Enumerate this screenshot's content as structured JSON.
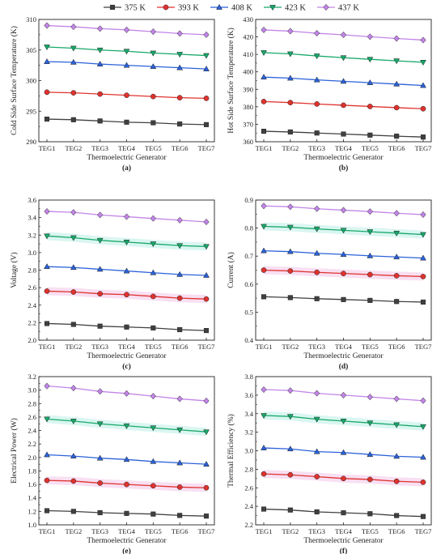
{
  "legend": {
    "position": "top-center",
    "items": [
      {
        "label": "375 K",
        "color": "#404040",
        "marker": "square"
      },
      {
        "label": "393 K",
        "color": "#e0322e",
        "marker": "circle"
      },
      {
        "label": "408 K",
        "color": "#2b62d9",
        "marker": "triangle-up"
      },
      {
        "label": "423 K",
        "color": "#17a86a",
        "marker": "triangle-down"
      },
      {
        "label": "437 K",
        "color": "#c285e8",
        "marker": "diamond"
      }
    ]
  },
  "chart_data": [
    {
      "type": "line",
      "panel_label": "(a)",
      "xlabel": "Thermoelectric Generator",
      "ylabel": "Cold Side Surface Temperature (K)",
      "categories": [
        "TEG1",
        "TEG2",
        "TEG3",
        "TEG4",
        "TEG5",
        "TEG6",
        "TEG7"
      ],
      "ylim": [
        290,
        310
      ],
      "yticks": [
        "290",
        "295",
        "300",
        "305",
        "310"
      ],
      "series": [
        {
          "name": "375 K",
          "values": [
            293.7,
            293.6,
            293.4,
            293.2,
            293.1,
            292.9,
            292.8
          ]
        },
        {
          "name": "393 K",
          "values": [
            298.1,
            298.0,
            297.8,
            297.6,
            297.4,
            297.2,
            297.1
          ]
        },
        {
          "name": "408 K",
          "values": [
            303.1,
            303.0,
            302.7,
            302.5,
            302.3,
            302.1,
            301.9
          ]
        },
        {
          "name": "423 K",
          "values": [
            305.5,
            305.3,
            305.0,
            304.8,
            304.5,
            304.3,
            304.1
          ]
        },
        {
          "name": "437 K",
          "values": [
            309.0,
            308.8,
            308.5,
            308.3,
            308.0,
            307.7,
            307.5
          ]
        }
      ]
    },
    {
      "type": "line",
      "panel_label": "(b)",
      "xlabel": "Thermoelectric Generator",
      "ylabel": "Hot Side Surface Temperature (K)",
      "categories": [
        "TEG1",
        "TEG2",
        "TEG3",
        "TEG4",
        "TEG5",
        "TEG6",
        "TEG7"
      ],
      "ylim": [
        360,
        430
      ],
      "yticks": [
        "360",
        "370",
        "380",
        "390",
        "400",
        "410",
        "420",
        "430"
      ],
      "series": [
        {
          "name": "375 K",
          "values": [
            366.0,
            365.6,
            365.0,
            364.4,
            363.8,
            363.2,
            362.7
          ]
        },
        {
          "name": "393 K",
          "values": [
            383.0,
            382.4,
            381.6,
            380.9,
            380.2,
            379.5,
            378.9
          ]
        },
        {
          "name": "408 K",
          "values": [
            397.0,
            396.4,
            395.4,
            394.6,
            393.8,
            393.0,
            392.2
          ]
        },
        {
          "name": "423 K",
          "values": [
            411.0,
            410.3,
            409.1,
            408.1,
            407.2,
            406.3,
            405.5
          ]
        },
        {
          "name": "437 K",
          "values": [
            424.0,
            423.3,
            422.1,
            421.2,
            420.1,
            419.1,
            418.2
          ]
        }
      ]
    },
    {
      "type": "line",
      "panel_label": "(c)",
      "xlabel": "Thermoelectric Generator",
      "ylabel": "Voltage (V)",
      "categories": [
        "TEG1",
        "TEG2",
        "TEG3",
        "TEG4",
        "TEG5",
        "TEG6",
        "TEG7"
      ],
      "ylim": [
        2.0,
        3.6
      ],
      "yticks": [
        "2.0",
        "2.2",
        "2.4",
        "2.6",
        "2.8",
        "3.0",
        "3.2",
        "3.4",
        "3.6"
      ],
      "series": [
        {
          "name": "375 K",
          "values": [
            2.19,
            2.18,
            2.16,
            2.15,
            2.14,
            2.12,
            2.11
          ]
        },
        {
          "name": "393 K",
          "values": [
            2.56,
            2.55,
            2.53,
            2.52,
            2.5,
            2.48,
            2.47
          ]
        },
        {
          "name": "408 K",
          "values": [
            2.84,
            2.83,
            2.81,
            2.79,
            2.77,
            2.75,
            2.74
          ]
        },
        {
          "name": "423 K",
          "values": [
            3.19,
            3.17,
            3.14,
            3.12,
            3.1,
            3.08,
            3.07
          ]
        },
        {
          "name": "437 K",
          "values": [
            3.47,
            3.46,
            3.43,
            3.41,
            3.39,
            3.37,
            3.35
          ]
        }
      ]
    },
    {
      "type": "line",
      "panel_label": "(d)",
      "xlabel": "Thermoelectric Generator",
      "ylabel": "Current (A)",
      "categories": [
        "TEG1",
        "TEG2",
        "TEG3",
        "TEG4",
        "TEG5",
        "TEG6",
        "TEG7"
      ],
      "ylim": [
        0.4,
        0.9
      ],
      "yticks": [
        "0.4",
        "0.5",
        "0.6",
        "0.7",
        "0.8",
        "0.9"
      ],
      "series": [
        {
          "name": "375 K",
          "values": [
            0.555,
            0.552,
            0.548,
            0.545,
            0.542,
            0.538,
            0.536
          ]
        },
        {
          "name": "393 K",
          "values": [
            0.65,
            0.647,
            0.642,
            0.638,
            0.634,
            0.63,
            0.627
          ]
        },
        {
          "name": "408 K",
          "values": [
            0.719,
            0.716,
            0.71,
            0.706,
            0.701,
            0.697,
            0.693
          ]
        },
        {
          "name": "423 K",
          "values": [
            0.806,
            0.803,
            0.797,
            0.792,
            0.787,
            0.782,
            0.777
          ]
        },
        {
          "name": "437 K",
          "values": [
            0.879,
            0.876,
            0.869,
            0.864,
            0.859,
            0.853,
            0.848
          ]
        }
      ]
    },
    {
      "type": "line",
      "panel_label": "(e)",
      "xlabel": "Thermoelectric Generator",
      "ylabel": "Electrical Power (W)",
      "categories": [
        "TEG1",
        "TEG2",
        "TEG3",
        "TEG4",
        "TEG5",
        "TEG6",
        "TEG7"
      ],
      "ylim": [
        1.0,
        3.2
      ],
      "yticks": [
        "1.0",
        "1.2",
        "1.4",
        "1.6",
        "1.8",
        "2.0",
        "2.2",
        "2.4",
        "2.6",
        "2.8",
        "3.0",
        "3.2"
      ],
      "series": [
        {
          "name": "375 K",
          "values": [
            1.21,
            1.2,
            1.18,
            1.17,
            1.16,
            1.14,
            1.13
          ]
        },
        {
          "name": "393 K",
          "values": [
            1.66,
            1.65,
            1.62,
            1.6,
            1.58,
            1.56,
            1.55
          ]
        },
        {
          "name": "408 K",
          "values": [
            2.04,
            2.02,
            1.99,
            1.97,
            1.94,
            1.92,
            1.9
          ]
        },
        {
          "name": "423 K",
          "values": [
            2.57,
            2.54,
            2.5,
            2.47,
            2.44,
            2.41,
            2.38
          ]
        },
        {
          "name": "437 K",
          "values": [
            3.06,
            3.03,
            2.98,
            2.95,
            2.91,
            2.87,
            2.84
          ]
        }
      ]
    },
    {
      "type": "line",
      "panel_label": "(f)",
      "xlabel": "Thermoelectric Generator",
      "ylabel": "Thermal Efficiency (%)",
      "categories": [
        "TEG1",
        "TEG2",
        "TEG3",
        "TEG4",
        "TEG5",
        "TEG6",
        "TEG7"
      ],
      "ylim": [
        2.2,
        3.8
      ],
      "yticks": [
        "2.2",
        "2.4",
        "2.6",
        "2.8",
        "3.0",
        "3.2",
        "3.4",
        "3.6",
        "3.8"
      ],
      "series": [
        {
          "name": "375 K",
          "values": [
            2.37,
            2.36,
            2.34,
            2.33,
            2.32,
            2.3,
            2.29
          ]
        },
        {
          "name": "393 K",
          "values": [
            2.75,
            2.74,
            2.72,
            2.7,
            2.69,
            2.67,
            2.66
          ]
        },
        {
          "name": "408 K",
          "values": [
            3.03,
            3.02,
            2.99,
            2.98,
            2.96,
            2.94,
            2.93
          ]
        },
        {
          "name": "423 K",
          "values": [
            3.38,
            3.37,
            3.34,
            3.32,
            3.3,
            3.28,
            3.26
          ]
        },
        {
          "name": "437 K",
          "values": [
            3.66,
            3.65,
            3.62,
            3.6,
            3.58,
            3.56,
            3.54
          ]
        }
      ]
    }
  ]
}
